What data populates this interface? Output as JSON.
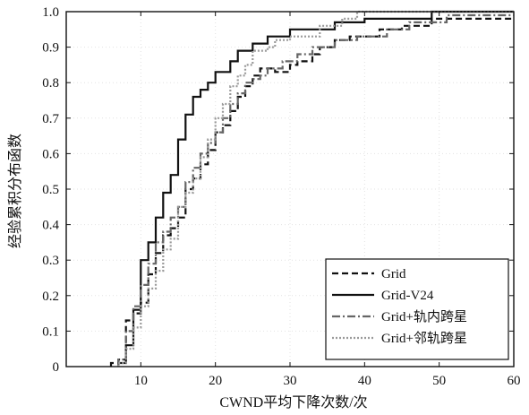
{
  "chart_data": {
    "type": "line",
    "title": "",
    "xlabel": "CWND平均下降次数/次",
    "ylabel": "经验累积分布函数",
    "xlim": [
      0,
      60
    ],
    "ylim": [
      0,
      1.0
    ],
    "xticks": [
      "10",
      "20",
      "30",
      "40",
      "50",
      "60"
    ],
    "yticks": [
      "0",
      "0.1",
      "0.2",
      "0.3",
      "0.4",
      "0.5",
      "0.6",
      "0.7",
      "0.8",
      "0.9",
      "1.0"
    ],
    "grid": true,
    "legend_position": "bottom-right",
    "series": [
      {
        "name": "Grid",
        "color": "#111111",
        "dash": "7,4",
        "width": 2.2,
        "points": [
          [
            6,
            0
          ],
          [
            6,
            0.01
          ],
          [
            7,
            0.01
          ],
          [
            7,
            0.02
          ],
          [
            8,
            0.02
          ],
          [
            8,
            0.13
          ],
          [
            9,
            0.13
          ],
          [
            9,
            0.15
          ],
          [
            10,
            0.15
          ],
          [
            10,
            0.18
          ],
          [
            11,
            0.18
          ],
          [
            11,
            0.26
          ],
          [
            12,
            0.26
          ],
          [
            12,
            0.32
          ],
          [
            13,
            0.32
          ],
          [
            13,
            0.37
          ],
          [
            14,
            0.37
          ],
          [
            14,
            0.39
          ],
          [
            15,
            0.39
          ],
          [
            15,
            0.42
          ],
          [
            16,
            0.42
          ],
          [
            16,
            0.5
          ],
          [
            17,
            0.5
          ],
          [
            17,
            0.53
          ],
          [
            18,
            0.53
          ],
          [
            18,
            0.57
          ],
          [
            19,
            0.57
          ],
          [
            19,
            0.61
          ],
          [
            20,
            0.61
          ],
          [
            20,
            0.66
          ],
          [
            21,
            0.66
          ],
          [
            21,
            0.68
          ],
          [
            22,
            0.68
          ],
          [
            22,
            0.72
          ],
          [
            23,
            0.72
          ],
          [
            23,
            0.76
          ],
          [
            24,
            0.76
          ],
          [
            24,
            0.79
          ],
          [
            25,
            0.79
          ],
          [
            25,
            0.82
          ],
          [
            26,
            0.82
          ],
          [
            26,
            0.84
          ],
          [
            28,
            0.84
          ],
          [
            28,
            0.83
          ],
          [
            30,
            0.83
          ],
          [
            30,
            0.85
          ],
          [
            31,
            0.85
          ],
          [
            31,
            0.86
          ],
          [
            33,
            0.86
          ],
          [
            33,
            0.88
          ],
          [
            34,
            0.88
          ],
          [
            34,
            0.9
          ],
          [
            36,
            0.9
          ],
          [
            36,
            0.92
          ],
          [
            38,
            0.92
          ],
          [
            38,
            0.93
          ],
          [
            42,
            0.93
          ],
          [
            42,
            0.95
          ],
          [
            45,
            0.95
          ],
          [
            45,
            0.96
          ],
          [
            49,
            0.96
          ],
          [
            49,
            0.98
          ],
          [
            60,
            0.98
          ]
        ]
      },
      {
        "name": "Grid-V24",
        "color": "#111111",
        "dash": "",
        "width": 2.2,
        "points": [
          [
            7,
            0
          ],
          [
            7,
            0.01
          ],
          [
            8,
            0.01
          ],
          [
            8,
            0.06
          ],
          [
            9,
            0.06
          ],
          [
            9,
            0.16
          ],
          [
            10,
            0.16
          ],
          [
            10,
            0.3
          ],
          [
            11,
            0.3
          ],
          [
            11,
            0.35
          ],
          [
            12,
            0.35
          ],
          [
            12,
            0.42
          ],
          [
            13,
            0.42
          ],
          [
            13,
            0.49
          ],
          [
            14,
            0.49
          ],
          [
            14,
            0.54
          ],
          [
            15,
            0.54
          ],
          [
            15,
            0.64
          ],
          [
            16,
            0.64
          ],
          [
            16,
            0.71
          ],
          [
            17,
            0.71
          ],
          [
            17,
            0.76
          ],
          [
            18,
            0.76
          ],
          [
            18,
            0.78
          ],
          [
            19,
            0.78
          ],
          [
            19,
            0.8
          ],
          [
            20,
            0.8
          ],
          [
            20,
            0.83
          ],
          [
            22,
            0.83
          ],
          [
            22,
            0.86
          ],
          [
            23,
            0.86
          ],
          [
            23,
            0.89
          ],
          [
            25,
            0.89
          ],
          [
            25,
            0.91
          ],
          [
            27,
            0.91
          ],
          [
            27,
            0.93
          ],
          [
            30,
            0.93
          ],
          [
            30,
            0.95
          ],
          [
            36,
            0.95
          ],
          [
            36,
            0.97
          ],
          [
            40,
            0.97
          ],
          [
            40,
            0.98
          ],
          [
            49,
            0.98
          ],
          [
            49,
            1.0
          ],
          [
            60,
            1.0
          ]
        ]
      },
      {
        "name": "Grid+轨内跨星",
        "color": "#666666",
        "dash": "9,3,2,3",
        "width": 2.2,
        "points": [
          [
            7,
            0
          ],
          [
            7,
            0.02
          ],
          [
            8,
            0.02
          ],
          [
            8,
            0.1
          ],
          [
            9,
            0.1
          ],
          [
            9,
            0.17
          ],
          [
            10,
            0.17
          ],
          [
            10,
            0.23
          ],
          [
            11,
            0.23
          ],
          [
            11,
            0.29
          ],
          [
            12,
            0.29
          ],
          [
            12,
            0.35
          ],
          [
            13,
            0.35
          ],
          [
            13,
            0.38
          ],
          [
            14,
            0.38
          ],
          [
            14,
            0.42
          ],
          [
            15,
            0.42
          ],
          [
            15,
            0.45
          ],
          [
            16,
            0.45
          ],
          [
            16,
            0.52
          ],
          [
            17,
            0.52
          ],
          [
            17,
            0.56
          ],
          [
            18,
            0.56
          ],
          [
            18,
            0.6
          ],
          [
            19,
            0.6
          ],
          [
            19,
            0.63
          ],
          [
            20,
            0.63
          ],
          [
            20,
            0.66
          ],
          [
            21,
            0.66
          ],
          [
            21,
            0.7
          ],
          [
            22,
            0.7
          ],
          [
            22,
            0.74
          ],
          [
            23,
            0.74
          ],
          [
            23,
            0.77
          ],
          [
            24,
            0.77
          ],
          [
            24,
            0.8
          ],
          [
            25,
            0.8
          ],
          [
            25,
            0.81
          ],
          [
            26,
            0.81
          ],
          [
            26,
            0.82
          ],
          [
            27,
            0.82
          ],
          [
            27,
            0.84
          ],
          [
            29,
            0.84
          ],
          [
            29,
            0.86
          ],
          [
            31,
            0.86
          ],
          [
            31,
            0.88
          ],
          [
            33,
            0.88
          ],
          [
            33,
            0.9
          ],
          [
            36,
            0.9
          ],
          [
            36,
            0.92
          ],
          [
            39,
            0.92
          ],
          [
            39,
            0.93
          ],
          [
            43,
            0.93
          ],
          [
            43,
            0.95
          ],
          [
            46,
            0.95
          ],
          [
            46,
            0.97
          ],
          [
            51,
            0.97
          ],
          [
            51,
            0.99
          ],
          [
            60,
            0.99
          ]
        ]
      },
      {
        "name": "Grid+邻轨跨星",
        "color": "#9a9a9a",
        "dash": "2,2",
        "width": 2.2,
        "points": [
          [
            7,
            0
          ],
          [
            7,
            0.01
          ],
          [
            8,
            0.01
          ],
          [
            8,
            0.05
          ],
          [
            9,
            0.05
          ],
          [
            9,
            0.11
          ],
          [
            10,
            0.11
          ],
          [
            10,
            0.17
          ],
          [
            11,
            0.17
          ],
          [
            11,
            0.22
          ],
          [
            12,
            0.22
          ],
          [
            12,
            0.27
          ],
          [
            13,
            0.27
          ],
          [
            13,
            0.33
          ],
          [
            14,
            0.33
          ],
          [
            14,
            0.36
          ],
          [
            15,
            0.36
          ],
          [
            15,
            0.45
          ],
          [
            16,
            0.45
          ],
          [
            16,
            0.49
          ],
          [
            17,
            0.49
          ],
          [
            17,
            0.53
          ],
          [
            18,
            0.53
          ],
          [
            18,
            0.59
          ],
          [
            19,
            0.59
          ],
          [
            19,
            0.64
          ],
          [
            20,
            0.64
          ],
          [
            20,
            0.7
          ],
          [
            21,
            0.7
          ],
          [
            21,
            0.74
          ],
          [
            22,
            0.74
          ],
          [
            22,
            0.79
          ],
          [
            23,
            0.79
          ],
          [
            23,
            0.82
          ],
          [
            24,
            0.82
          ],
          [
            24,
            0.85
          ],
          [
            25,
            0.85
          ],
          [
            25,
            0.89
          ],
          [
            27,
            0.89
          ],
          [
            27,
            0.9
          ],
          [
            28,
            0.9
          ],
          [
            28,
            0.92
          ],
          [
            30,
            0.92
          ],
          [
            30,
            0.93
          ],
          [
            34,
            0.93
          ],
          [
            34,
            0.96
          ],
          [
            37,
            0.96
          ],
          [
            37,
            0.98
          ],
          [
            39,
            0.98
          ],
          [
            39,
            1.0
          ],
          [
            60,
            1.0
          ]
        ]
      }
    ]
  }
}
